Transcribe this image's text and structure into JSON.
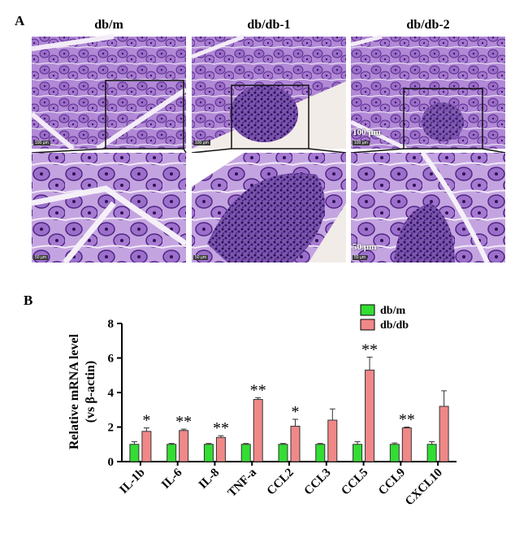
{
  "panelA": {
    "letter": "A",
    "columns": [
      {
        "title": "db/m"
      },
      {
        "title": "db/db-1"
      },
      {
        "title": "db/db-2"
      }
    ],
    "scale_top": "100 µm",
    "scale_bottom": "50 µm",
    "scalebar_small_top": "100 µm",
    "scalebar_small_bottom": "50 µm",
    "colors": {
      "stain_dark": "#5a2f8c",
      "stain_mid": "#9a6cc9",
      "stain_light": "#d7c2ec",
      "background": "#f4eef7"
    }
  },
  "panelB": {
    "letter": "B",
    "legend": [
      "db/m",
      "db/db"
    ]
  },
  "chart_data": {
    "type": "bar",
    "ylabel_line1": "Relative mRNA level",
    "ylabel_line2": "(vs β-actin)",
    "ylim": [
      0,
      8
    ],
    "yticks": [
      0,
      2,
      4,
      6,
      8
    ],
    "categories": [
      "IL-1b",
      "IL-6",
      "IL-8",
      "TNF-a",
      "CCL2",
      "CCL3",
      "CCL5",
      "CCL9",
      "CXCL10"
    ],
    "series": [
      {
        "name": "db/m",
        "color": "#33dd33",
        "values": [
          1.0,
          1.0,
          1.0,
          1.0,
          1.0,
          1.0,
          1.0,
          1.0,
          1.0
        ],
        "errors": [
          0.15,
          0.05,
          0.05,
          0.05,
          0.05,
          0.05,
          0.15,
          0.08,
          0.15
        ]
      },
      {
        "name": "db/db",
        "color": "#f08888",
        "values": [
          1.75,
          1.8,
          1.4,
          3.6,
          2.05,
          2.4,
          5.3,
          1.95,
          3.2
        ],
        "errors": [
          0.2,
          0.08,
          0.1,
          0.1,
          0.4,
          0.65,
          0.75,
          0.05,
          0.9
        ]
      }
    ],
    "significance": [
      "*",
      "**",
      "**",
      "**",
      "*",
      "",
      "**",
      "**",
      ""
    ]
  }
}
